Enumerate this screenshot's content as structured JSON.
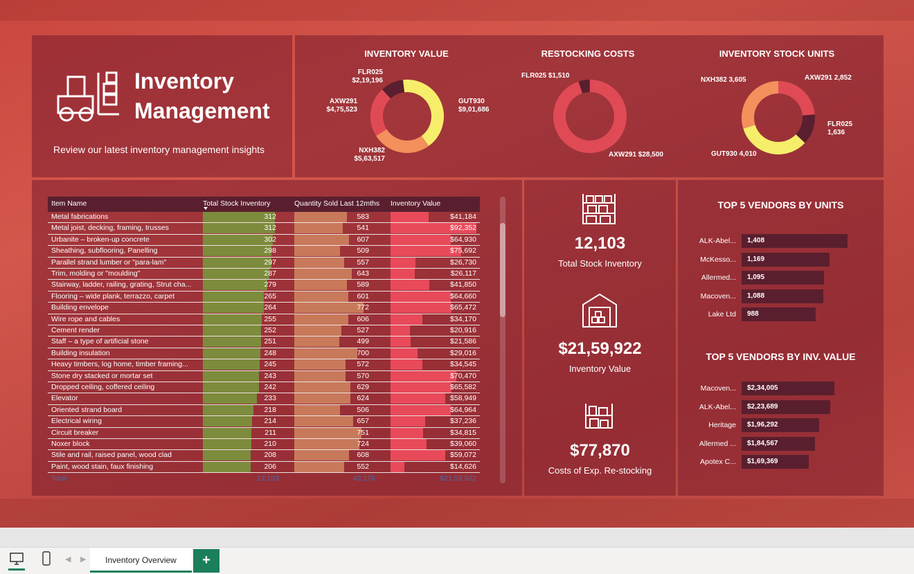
{
  "title": "Inventory Management",
  "subtitle": "Review our latest inventory management insights",
  "donuts": [
    {
      "title": "INVENTORY VALUE",
      "labels": [
        {
          "name": "FLR025",
          "value": "$2,19,196"
        },
        {
          "name": "GUT930",
          "value": "$9,01,686"
        },
        {
          "name": "AXW291",
          "value": "$4,75,523"
        },
        {
          "name": "NXH382",
          "value": "$5,63,517"
        }
      ],
      "slices": [
        {
          "name": "FLR025",
          "value": 219196,
          "color": "#5a1f2e"
        },
        {
          "name": "GUT930",
          "value": 901686,
          "color": "#f6ee6a"
        },
        {
          "name": "NXH382",
          "value": 563517,
          "color": "#f3905c"
        },
        {
          "name": "AXW291",
          "value": 475523,
          "color": "#e04a55"
        }
      ]
    },
    {
      "title": "RESTOCKING COSTS",
      "labels": [
        {
          "name": "FLR025",
          "value": "$1,510"
        },
        {
          "name": "AXW291",
          "value": "$28,500"
        }
      ],
      "slices": [
        {
          "name": "FLR025",
          "value": 1510,
          "color": "#5a1f2e"
        },
        {
          "name": "AXW291",
          "value": 28500,
          "color": "#e04a55"
        }
      ]
    },
    {
      "title": "INVENTORY STOCK UNITS",
      "labels": [
        {
          "name": "NXH382",
          "value": "3,605"
        },
        {
          "name": "AXW291",
          "value": "2,852"
        },
        {
          "name": "FLR025",
          "value": "1,636"
        },
        {
          "name": "GUT930",
          "value": "4,010"
        }
      ],
      "slices": [
        {
          "name": "AXW291",
          "value": 2852,
          "color": "#e04a55"
        },
        {
          "name": "FLR025",
          "value": 1636,
          "color": "#5a1f2e"
        },
        {
          "name": "GUT930",
          "value": 4010,
          "color": "#f6ee6a"
        },
        {
          "name": "NXH382",
          "value": 3605,
          "color": "#f3905c"
        }
      ]
    }
  ],
  "table": {
    "headers": [
      "Item Name",
      "Total Stock Inventory",
      "Quantity Sold Last 12mths",
      "Inventory Value"
    ],
    "rows": [
      [
        "Metal fabrications",
        312,
        583,
        "$41,184",
        41184
      ],
      [
        "Metal joist, decking, framing, trusses",
        312,
        541,
        "$92,352",
        92352
      ],
      [
        "Urbanite – broken-up concrete",
        302,
        607,
        "$64,930",
        64930
      ],
      [
        "Sheathing, subflooring, Panelling",
        298,
        509,
        "$75,692",
        75692
      ],
      [
        "Parallel strand lumber or \"para-lam\"",
        297,
        557,
        "$26,730",
        26730
      ],
      [
        "Trim, molding or \"moulding\"",
        287,
        643,
        "$26,117",
        26117
      ],
      [
        "Stairway, ladder, railing, grating, Strut cha...",
        279,
        589,
        "$41,850",
        41850
      ],
      [
        "Flooring – wide plank, terrazzo, carpet",
        265,
        601,
        "$64,660",
        64660
      ],
      [
        "Building envelope",
        264,
        772,
        "$65,472",
        65472
      ],
      [
        "Wire rope and cables",
        255,
        606,
        "$34,170",
        34170
      ],
      [
        "Cement render",
        252,
        527,
        "$20,916",
        20916
      ],
      [
        "Staff – a type of artificial stone",
        251,
        499,
        "$21,586",
        21586
      ],
      [
        "Building insulation",
        248,
        700,
        "$29,016",
        29016
      ],
      [
        "Heavy timbers, log home, timber framing...",
        245,
        572,
        "$34,545",
        34545
      ],
      [
        "Stone dry stacked or mortar set",
        243,
        570,
        "$70,470",
        70470
      ],
      [
        "Dropped ceiling, coffered ceiling",
        242,
        629,
        "$65,582",
        65582
      ],
      [
        "Elevator",
        233,
        624,
        "$58,949",
        58949
      ],
      [
        "Oriented strand board",
        218,
        506,
        "$64,964",
        64964
      ],
      [
        "Electrical wiring",
        214,
        657,
        "$37,236",
        37236
      ],
      [
        "Circuit breaker",
        211,
        751,
        "$34,815",
        34815
      ],
      [
        "Noxer block",
        210,
        724,
        "$39,060",
        39060
      ],
      [
        "Stile and rail, raised panel, wood clad",
        208,
        608,
        "$59,072",
        59072
      ],
      [
        "Paint, wood stain, faux finishing",
        206,
        552,
        "$14,626",
        14626
      ]
    ],
    "total": [
      "Total",
      "12,103",
      "42,176",
      "$21,59,922"
    ],
    "colors": {
      "stock": "#7d8b3c",
      "sold": "#c8795a",
      "value": "#e84a5a"
    }
  },
  "kpis": [
    {
      "value": "12,103",
      "label": "Total Stock Inventory"
    },
    {
      "value": "$21,59,922",
      "label": "Inventory Value"
    },
    {
      "value": "$77,870",
      "label": "Costs of Exp. Re-stocking"
    }
  ],
  "vendors_units": {
    "title": "TOP 5 VENDORS BY UNITS",
    "items": [
      {
        "name": "ALK-Abel...",
        "label": "1,408",
        "value": 1408
      },
      {
        "name": "McKesso...",
        "label": "1,169",
        "value": 1169
      },
      {
        "name": "Allermed...",
        "label": "1,095",
        "value": 1095
      },
      {
        "name": "Macoven...",
        "label": "1,088",
        "value": 1088
      },
      {
        "name": "Lake Ltd",
        "label": "988",
        "value": 988
      }
    ]
  },
  "vendors_value": {
    "title": "TOP 5 VENDORS BY INV. VALUE",
    "items": [
      {
        "name": "Macoven...",
        "label": "$2,34,005",
        "value": 234005
      },
      {
        "name": "ALK-Abel...",
        "label": "$2,23,689",
        "value": 223689
      },
      {
        "name": "Heritage",
        "label": "$1,96,292",
        "value": 196292
      },
      {
        "name": "Allermed ...",
        "label": "$1,84,567",
        "value": 184567
      },
      {
        "name": "Apotex C...",
        "label": "$1,69,369",
        "value": 169369
      }
    ]
  },
  "footer": {
    "tab_label": "Inventory Overview",
    "add_label": "+"
  }
}
